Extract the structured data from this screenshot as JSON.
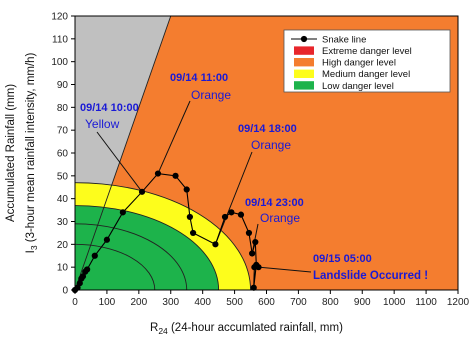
{
  "chart_data": {
    "type": "line",
    "xlabel_main": "R",
    "xlabel_sub": "24",
    "xlabel_rest": " (24-hour accumlated rainfall, mm)",
    "ylabel_line1": "Accumulated Rainfall (mm)",
    "ylabel_main": "I",
    "ylabel_sub": "3",
    "ylabel_rest": " (3-hour  mean rainfall intensity, mm/h)",
    "xlim": [
      0,
      1200
    ],
    "ylim": [
      0,
      120
    ],
    "x_ticks": [
      0,
      100,
      200,
      300,
      400,
      500,
      600,
      700,
      800,
      900,
      1000,
      1100,
      1200
    ],
    "y_ticks": [
      0,
      10,
      20,
      30,
      40,
      50,
      60,
      70,
      80,
      90,
      100,
      110,
      120
    ],
    "grid": false,
    "legend_position": "top-right",
    "legend": [
      {
        "label": "Snake line",
        "kind": "line-marker",
        "color": "#000000"
      },
      {
        "label": "Extreme danger level",
        "kind": "patch",
        "color": "#e8262b"
      },
      {
        "label": "High danger level",
        "kind": "patch",
        "color": "#f47d2f"
      },
      {
        "label": "Medium danger level",
        "kind": "patch",
        "color": "#fdfd1c"
      },
      {
        "label": "Low danger level",
        "kind": "patch",
        "color": "#1db34b"
      }
    ],
    "regions": {
      "gray_color": "#c0c0c0",
      "boundary_line": {
        "x0": 0,
        "y0": 0,
        "x1": 300,
        "y1": 120
      },
      "high_color": "#f47d2f",
      "medium_color": "#fdfd1c",
      "medium_radius_x": 550,
      "medium_radius_y": 47,
      "low_color": "#1db34b",
      "low_radius_x": 450,
      "low_radius_y": 37
    },
    "contour_arcs": [
      {
        "rx": 550,
        "ry": 47
      },
      {
        "rx": 450,
        "ry": 37
      },
      {
        "rx": 350,
        "ry": 29
      },
      {
        "rx": 250,
        "ry": 20
      }
    ],
    "series": [
      {
        "name": "Snake line",
        "x": [
          0,
          8,
          15,
          20,
          25,
          32,
          38,
          62,
          100,
          150,
          210,
          260,
          315,
          350,
          360,
          370,
          440,
          470,
          490,
          520,
          545,
          555,
          565,
          568,
          560,
          562,
          575
        ],
        "y": [
          0,
          1,
          3,
          5,
          6,
          8,
          9,
          15,
          22,
          34,
          43,
          51,
          50,
          44,
          32,
          25,
          20,
          32,
          34,
          33,
          25,
          16,
          21,
          11,
          1,
          10,
          10
        ]
      }
    ],
    "annotations": [
      {
        "time": "09/14  10:00",
        "level": "Yellow",
        "level_style": "normal"
      },
      {
        "time": "09/14  11:00",
        "level": "Orange",
        "level_style": "normal"
      },
      {
        "time": "09/14  18:00",
        "level": "Orange",
        "level_style": "normal"
      },
      {
        "time": "09/14  23:00",
        "level": "Orange",
        "level_style": "normal"
      },
      {
        "time": "09/15  05:00",
        "level": "Landslide Occurred !",
        "level_style": "bold"
      }
    ]
  }
}
